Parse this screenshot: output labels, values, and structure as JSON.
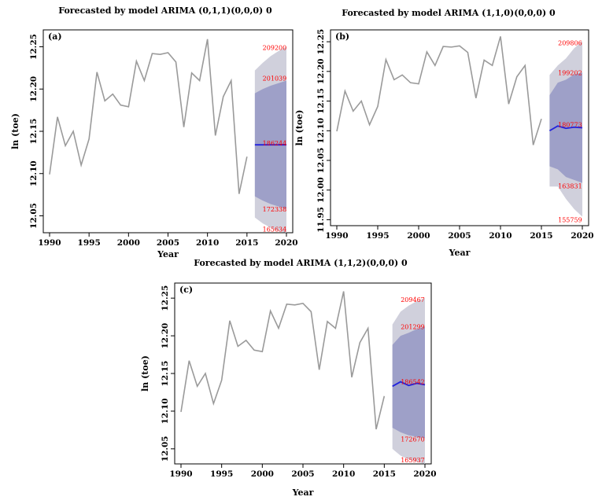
{
  "chart_data": [
    {
      "type": "line",
      "id": "a",
      "title": "Forecasted by model ARIMA (0,1,1)(0,0,0) 0",
      "panel_label": "(a)",
      "xlabel": "Year",
      "ylabel": "ln (toe)",
      "xlim": [
        1990,
        2020
      ],
      "ylim": [
        12.03,
        12.27
      ],
      "xticks": [
        1990,
        1995,
        2000,
        2005,
        2010,
        2015,
        2020
      ],
      "yticks": [
        12.05,
        12.1,
        12.15,
        12.2,
        12.25
      ],
      "ytick_labels": [
        "12.05",
        "12.10",
        "12.15",
        "12.20",
        "12.25"
      ],
      "colors": {
        "history": "#9a9a9a",
        "forecast": "#2222dd",
        "band95": "#d0d0dc",
        "band80": "#9ea0c8",
        "annotation": "#ff0000"
      },
      "history": {
        "x": [
          1990,
          1991,
          1992,
          1993,
          1994,
          1995,
          1996,
          1997,
          1998,
          1999,
          2000,
          2001,
          2002,
          2003,
          2004,
          2005,
          2006,
          2007,
          2008,
          2009,
          2010,
          2011,
          2012,
          2013,
          2014,
          2015
        ],
        "y": [
          12.099,
          12.167,
          12.133,
          12.15,
          12.11,
          12.141,
          12.22,
          12.186,
          12.194,
          12.181,
          12.179,
          12.233,
          12.21,
          12.242,
          12.241,
          12.243,
          12.232,
          12.155,
          12.219,
          12.21,
          12.259,
          12.145,
          12.191,
          12.21,
          12.076,
          12.12
        ]
      },
      "forecast": {
        "x": [
          2016,
          2017,
          2018,
          2019,
          2020
        ],
        "mean": [
          12.134,
          12.134,
          12.134,
          12.134,
          12.134
        ],
        "lo80": [
          12.073,
          12.068,
          12.064,
          12.061,
          12.058
        ],
        "hi80": [
          12.195,
          12.2,
          12.204,
          12.207,
          12.21
        ],
        "lo95": [
          12.048,
          12.041,
          12.036,
          12.032,
          12.03
        ],
        "hi95": [
          12.222,
          12.231,
          12.239,
          12.245,
          12.25
        ]
      },
      "annotations": [
        {
          "text": "209200",
          "x": 2018.5,
          "y": 12.249
        },
        {
          "text": "201039",
          "x": 2018.5,
          "y": 12.213
        },
        {
          "text": "186244",
          "x": 2018.5,
          "y": 12.136
        },
        {
          "text": "172338",
          "x": 2018.5,
          "y": 12.058
        },
        {
          "text": "165634",
          "x": 2018.5,
          "y": 12.034
        }
      ]
    },
    {
      "type": "line",
      "id": "b",
      "title": "Forecasted by model ARIMA (1,1,0)(0,0,0) 0",
      "panel_label": "(b)",
      "xlabel": "Year",
      "ylabel": "ln (toe)",
      "xlim": [
        1990,
        2020
      ],
      "ylim": [
        11.94,
        12.27
      ],
      "xticks": [
        1990,
        1995,
        2000,
        2005,
        2010,
        2015,
        2020
      ],
      "yticks": [
        11.95,
        12.0,
        12.05,
        12.1,
        12.15,
        12.2,
        12.25
      ],
      "ytick_labels": [
        "11.95",
        "12.00",
        "12.05",
        "12.10",
        "12.15",
        "12.20",
        "12.25"
      ],
      "colors": {
        "history": "#9a9a9a",
        "forecast": "#2222dd",
        "band95": "#d0d0dc",
        "band80": "#9ea0c8",
        "annotation": "#ff0000"
      },
      "history": {
        "x": [
          1990,
          1991,
          1992,
          1993,
          1994,
          1995,
          1996,
          1997,
          1998,
          1999,
          2000,
          2001,
          2002,
          2003,
          2004,
          2005,
          2006,
          2007,
          2008,
          2009,
          2010,
          2011,
          2012,
          2013,
          2014,
          2015
        ],
        "y": [
          12.099,
          12.167,
          12.133,
          12.15,
          12.11,
          12.141,
          12.22,
          12.186,
          12.194,
          12.181,
          12.179,
          12.233,
          12.21,
          12.242,
          12.241,
          12.243,
          12.232,
          12.155,
          12.219,
          12.21,
          12.259,
          12.145,
          12.191,
          12.21,
          12.076,
          12.12
        ]
      },
      "forecast": {
        "x": [
          2016,
          2017,
          2018,
          2019,
          2020
        ],
        "mean": [
          12.1,
          12.108,
          12.104,
          12.106,
          12.105
        ],
        "lo80": [
          12.04,
          12.035,
          12.022,
          12.017,
          12.012
        ],
        "hi80": [
          12.16,
          12.181,
          12.186,
          12.195,
          12.198
        ],
        "lo95": [
          12.006,
          12.006,
          11.985,
          11.968,
          11.955
        ],
        "hi95": [
          12.194,
          12.21,
          12.222,
          12.239,
          12.251
        ]
      },
      "annotations": [
        {
          "text": "209806",
          "x": 2018.5,
          "y": 12.248
        },
        {
          "text": "199202",
          "x": 2018.5,
          "y": 12.198
        },
        {
          "text": "180773",
          "x": 2018.5,
          "y": 12.11
        },
        {
          "text": "163831",
          "x": 2018.5,
          "y": 12.007
        },
        {
          "text": "155759",
          "x": 2018.5,
          "y": 11.95
        }
      ]
    },
    {
      "type": "line",
      "id": "c",
      "title": "Forecasted by model ARIMA (1,1,2)(0,0,0) 0",
      "panel_label": "(c)",
      "xlabel": "Year",
      "ylabel": "ln (toe)",
      "xlim": [
        1990,
        2020
      ],
      "ylim": [
        12.03,
        12.27
      ],
      "xticks": [
        1990,
        1995,
        2000,
        2005,
        2010,
        2015,
        2020
      ],
      "yticks": [
        12.05,
        12.1,
        12.15,
        12.2,
        12.25
      ],
      "ytick_labels": [
        "12.05",
        "12.10",
        "12.15",
        "12.20",
        "12.25"
      ],
      "colors": {
        "history": "#9a9a9a",
        "forecast": "#2222dd",
        "band95": "#d0d0dc",
        "band80": "#9ea0c8",
        "annotation": "#ff0000"
      },
      "history": {
        "x": [
          1990,
          1991,
          1992,
          1993,
          1994,
          1995,
          1996,
          1997,
          1998,
          1999,
          2000,
          2001,
          2002,
          2003,
          2004,
          2005,
          2006,
          2007,
          2008,
          2009,
          2010,
          2011,
          2012,
          2013,
          2014,
          2015
        ],
        "y": [
          12.099,
          12.167,
          12.133,
          12.15,
          12.11,
          12.141,
          12.22,
          12.186,
          12.194,
          12.181,
          12.179,
          12.233,
          12.21,
          12.242,
          12.241,
          12.243,
          12.232,
          12.155,
          12.219,
          12.21,
          12.259,
          12.145,
          12.191,
          12.21,
          12.076,
          12.12
        ]
      },
      "forecast": {
        "x": [
          2016,
          2017,
          2018,
          2019,
          2020
        ],
        "mean": [
          12.133,
          12.139,
          12.134,
          12.137,
          12.135
        ],
        "lo80": [
          12.078,
          12.072,
          12.068,
          12.066,
          12.064
        ],
        "hi80": [
          12.188,
          12.2,
          12.204,
          12.209,
          12.212
        ],
        "lo95": [
          12.05,
          12.041,
          12.036,
          12.033,
          12.03
        ],
        "hi95": [
          12.215,
          12.232,
          12.24,
          12.246,
          12.25
        ]
      },
      "annotations": [
        {
          "text": "209467",
          "x": 2018.5,
          "y": 12.248
        },
        {
          "text": "201299",
          "x": 2018.5,
          "y": 12.212
        },
        {
          "text": "186542",
          "x": 2018.5,
          "y": 12.139
        },
        {
          "text": "172670",
          "x": 2018.5,
          "y": 12.063
        },
        {
          "text": "165937",
          "x": 2018.5,
          "y": 12.035
        }
      ]
    }
  ]
}
